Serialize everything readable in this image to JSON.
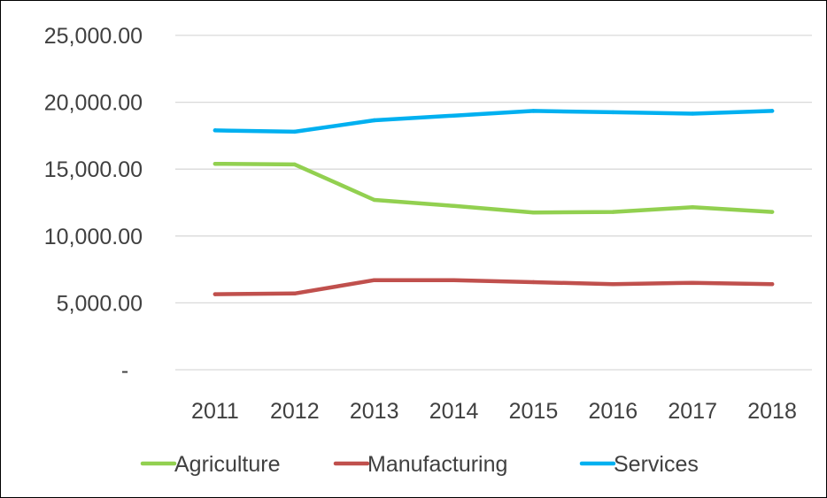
{
  "chart_data": {
    "type": "line",
    "title": "",
    "xlabel": "",
    "ylabel": "",
    "categories": [
      "2011",
      "2012",
      "2013",
      "2014",
      "2015",
      "2016",
      "2017",
      "2018"
    ],
    "y_ticks": [
      0,
      5000,
      10000,
      15000,
      20000,
      25000
    ],
    "y_tick_labels": [
      "-",
      "5,000.00",
      "10,000.00",
      "15,000.00",
      "20,000.00",
      "25,000.00"
    ],
    "ylim": [
      0,
      25000
    ],
    "grid": true,
    "legend_position": "bottom",
    "series": [
      {
        "name": "Agriculture",
        "color": "#92d050",
        "values": [
          15400,
          15350,
          12700,
          12250,
          11750,
          11800,
          12150,
          11800
        ]
      },
      {
        "name": "Manufacturing",
        "color": "#c0504d",
        "values": [
          5650,
          5700,
          6700,
          6700,
          6550,
          6400,
          6500,
          6400
        ]
      },
      {
        "name": "Services",
        "color": "#00b0f0",
        "values": [
          17900,
          17800,
          18650,
          19000,
          19350,
          19250,
          19150,
          19350
        ]
      }
    ]
  }
}
